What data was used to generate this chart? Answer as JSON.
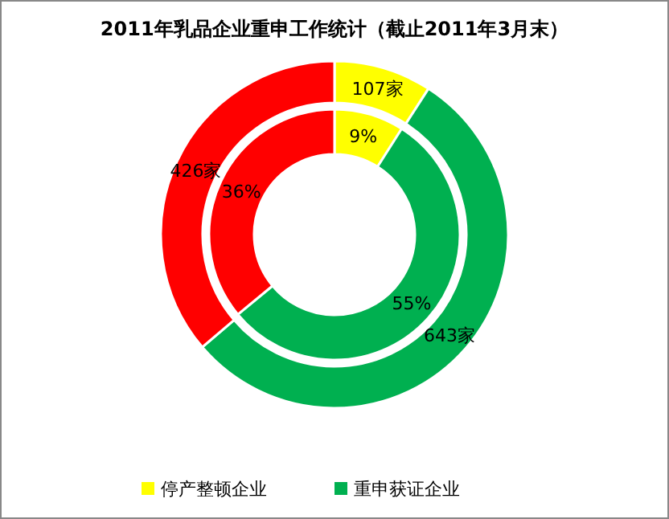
{
  "chart_data": {
    "type": "donut",
    "title": "2011年乳品企业重申工作统计（截止2011年3月末）",
    "categories": [
      "停产整顿企业",
      "重申获证企业",
      null
    ],
    "colors": [
      "#ffff00",
      "#00b050",
      "#ff0000"
    ],
    "series": [
      {
        "values": [
          107,
          643,
          426
        ],
        "value_labels": [
          "107家",
          "643家",
          "426家"
        ]
      },
      {
        "values": [
          9,
          55,
          36
        ],
        "value_labels": [
          "9%",
          "55%",
          "36%"
        ]
      }
    ],
    "legend": "bottom"
  }
}
